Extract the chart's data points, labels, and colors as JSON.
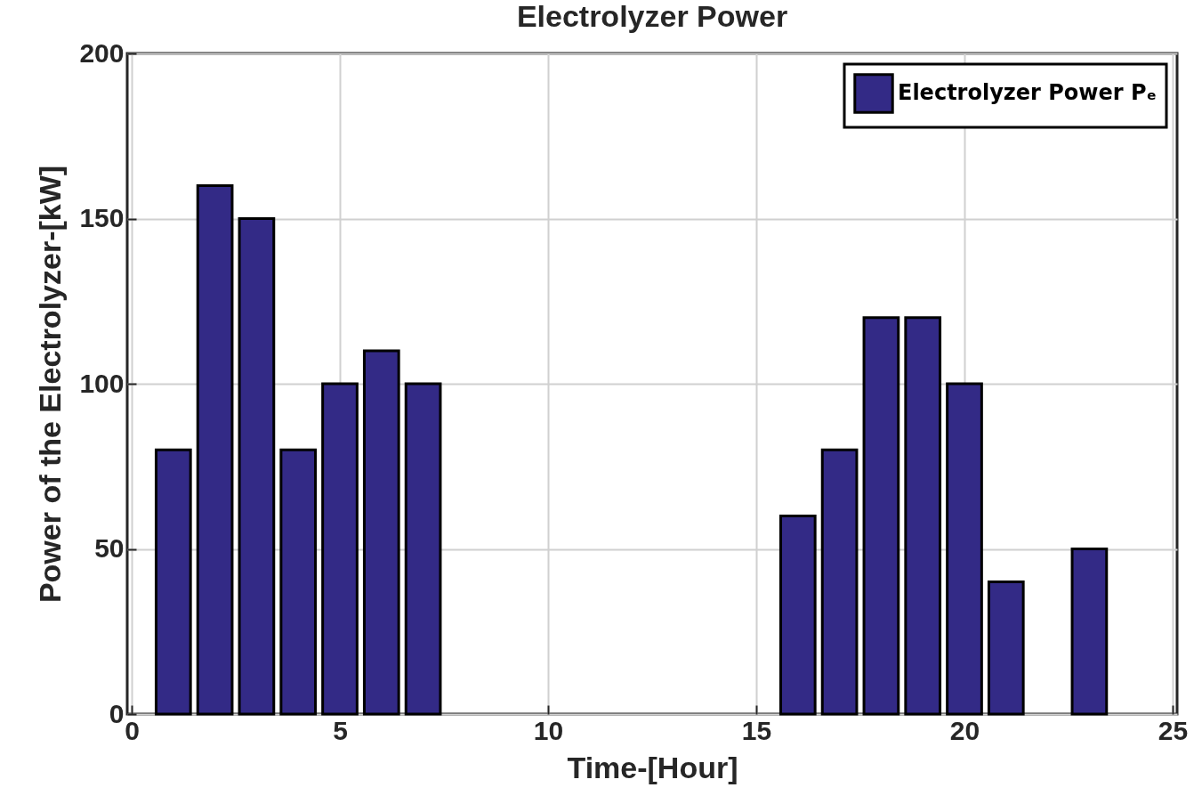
{
  "chart_data": {
    "type": "bar",
    "title": "Electrolyzer Power",
    "xlabel": "Time-[Hour]",
    "ylabel": "Power of the Electrolyzer-[kW]",
    "x": [
      1,
      2,
      3,
      4,
      5,
      6,
      7,
      8,
      9,
      10,
      11,
      12,
      13,
      14,
      15,
      16,
      17,
      18,
      19,
      20,
      21,
      22,
      23,
      24
    ],
    "series": [
      {
        "name": "Electrolyzer Power Pₑ",
        "color": "#332a86",
        "values": [
          80,
          160,
          150,
          80,
          100,
          110,
          100,
          0,
          0,
          0,
          0,
          0,
          0,
          0,
          0,
          60,
          80,
          120,
          120,
          100,
          40,
          0,
          50,
          0
        ]
      }
    ],
    "xlim": [
      0,
      25
    ],
    "xticks": [
      0,
      5,
      10,
      15,
      20,
      25
    ],
    "ylim": [
      0,
      200
    ],
    "yticks": [
      0,
      50,
      100,
      150,
      200
    ],
    "grid": true,
    "legend": "top right"
  }
}
